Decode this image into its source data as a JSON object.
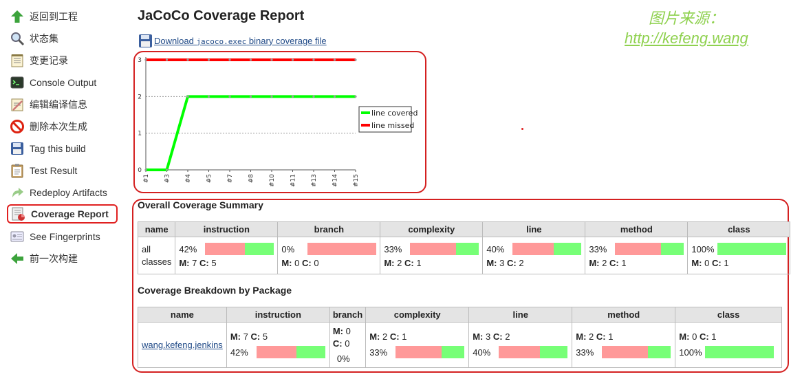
{
  "sidebar": {
    "items": [
      {
        "label": "返回到工程",
        "icon": "up-arrow-icon"
      },
      {
        "label": "状态集",
        "icon": "magnifier-icon"
      },
      {
        "label": "变更记录",
        "icon": "notepad-icon"
      },
      {
        "label": "Console Output",
        "icon": "terminal-icon"
      },
      {
        "label": "编辑编译信息",
        "icon": "notepad-edit-icon"
      },
      {
        "label": "删除本次生成",
        "icon": "no-entry-icon"
      },
      {
        "label": "Tag this build",
        "icon": "floppy-disk-icon"
      },
      {
        "label": "Test Result",
        "icon": "clipboard-icon"
      },
      {
        "label": "Redeploy Artifacts",
        "icon": "redeploy-arrow-icon"
      },
      {
        "label": "Coverage Report",
        "icon": "coverage-report-icon"
      },
      {
        "label": "See Fingerprints",
        "icon": "fingerprint-icon"
      },
      {
        "label": "前一次构建",
        "icon": "left-arrow-icon"
      }
    ],
    "active_index": 9
  },
  "header": {
    "title": "JaCoCo Coverage Report",
    "download_prefix": "Download ",
    "download_file": "jacoco.exec",
    "download_suffix": " binary coverage file"
  },
  "watermark": {
    "line1": "图片来源：",
    "line2": "http://kefeng.wang"
  },
  "chart_data": {
    "type": "line",
    "categories": [
      "#1",
      "#3",
      "#4",
      "#5",
      "#7",
      "#8",
      "#10",
      "#11",
      "#13",
      "#14",
      "#15"
    ],
    "series": [
      {
        "name": "line covered",
        "color": "#00ff00",
        "values": [
          0,
          0,
          2,
          2,
          2,
          2,
          2,
          2,
          2,
          2,
          2
        ]
      },
      {
        "name": "line missed",
        "color": "#ff0000",
        "values": [
          3,
          3,
          3,
          3,
          3,
          3,
          3,
          3,
          3,
          3,
          3
        ]
      }
    ],
    "y_ticks": [
      "0",
      "1",
      "2",
      "3"
    ],
    "ylim": [
      0,
      3
    ],
    "grid": true,
    "legend_position": "right"
  },
  "overall": {
    "title": "Overall Coverage Summary",
    "headers": [
      "name",
      "instruction",
      "branch",
      "complexity",
      "line",
      "method",
      "class"
    ],
    "row": {
      "name": "all classes",
      "cells": [
        {
          "pct": "42%",
          "missed": "7",
          "covered": "5",
          "cov_fraction": 0.42
        },
        {
          "pct": "0%",
          "missed": "0",
          "covered": "0",
          "cov_fraction": 0.0
        },
        {
          "pct": "33%",
          "missed": "2",
          "covered": "1",
          "cov_fraction": 0.33
        },
        {
          "pct": "40%",
          "missed": "3",
          "covered": "2",
          "cov_fraction": 0.4
        },
        {
          "pct": "33%",
          "missed": "2",
          "covered": "1",
          "cov_fraction": 0.33
        },
        {
          "pct": "100%",
          "missed": "0",
          "covered": "1",
          "cov_fraction": 1.0
        }
      ]
    }
  },
  "breakdown": {
    "title": "Coverage Breakdown by Package",
    "headers": [
      "name",
      "instruction",
      "branch",
      "complexity",
      "line",
      "method",
      "class"
    ],
    "row": {
      "name": "wang.kefeng.jenkins",
      "cells": [
        {
          "pct": "42%",
          "missed": "7",
          "covered": "5",
          "cov_fraction": 0.42
        },
        {
          "pct": "0%",
          "missed": "0",
          "covered": "0",
          "cov_fraction": 0.0
        },
        {
          "pct": "33%",
          "missed": "2",
          "covered": "1",
          "cov_fraction": 0.33
        },
        {
          "pct": "40%",
          "missed": "3",
          "covered": "2",
          "cov_fraction": 0.4
        },
        {
          "pct": "33%",
          "missed": "2",
          "covered": "1",
          "cov_fraction": 0.33
        },
        {
          "pct": "100%",
          "missed": "0",
          "covered": "1",
          "cov_fraction": 1.0
        }
      ]
    }
  },
  "labels": {
    "m": "M:",
    "c": "C:"
  }
}
